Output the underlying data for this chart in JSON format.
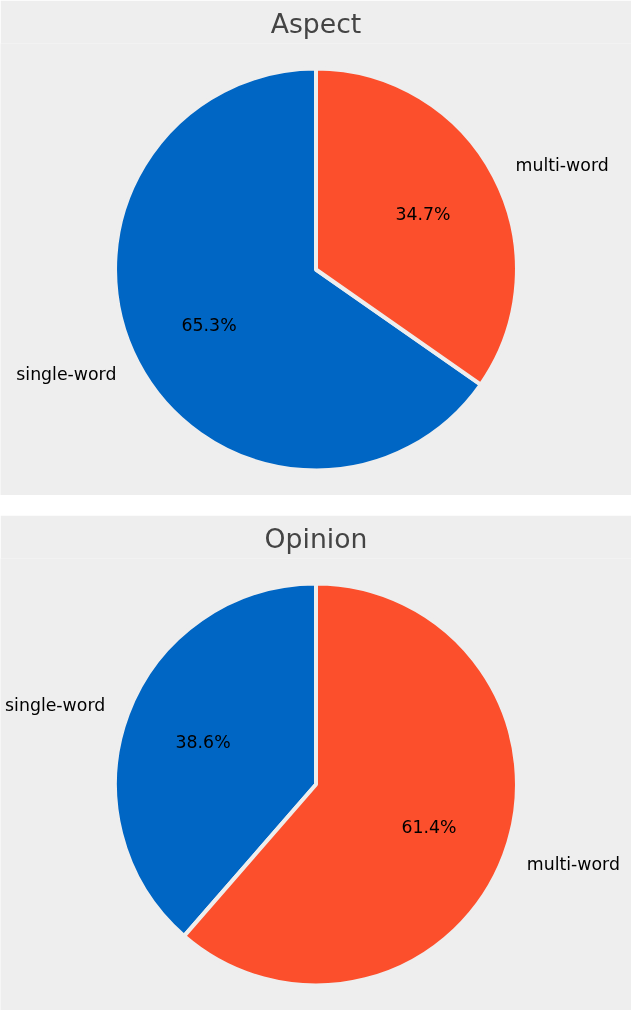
{
  "chart_data": [
    {
      "type": "pie",
      "title": "Aspect",
      "categories": [
        "single-word",
        "multi-word"
      ],
      "values": [
        65.3,
        34.7
      ],
      "colors": [
        "#0066c4",
        "#fc4f2c"
      ],
      "value_labels": [
        "65.3%",
        "34.7%"
      ]
    },
    {
      "type": "pie",
      "title": "Opinion",
      "categories": [
        "single-word",
        "multi-word"
      ],
      "values": [
        38.6,
        61.4
      ],
      "colors": [
        "#0066c4",
        "#fc4f2c"
      ],
      "value_labels": [
        "38.6%",
        "61.4%"
      ]
    }
  ]
}
